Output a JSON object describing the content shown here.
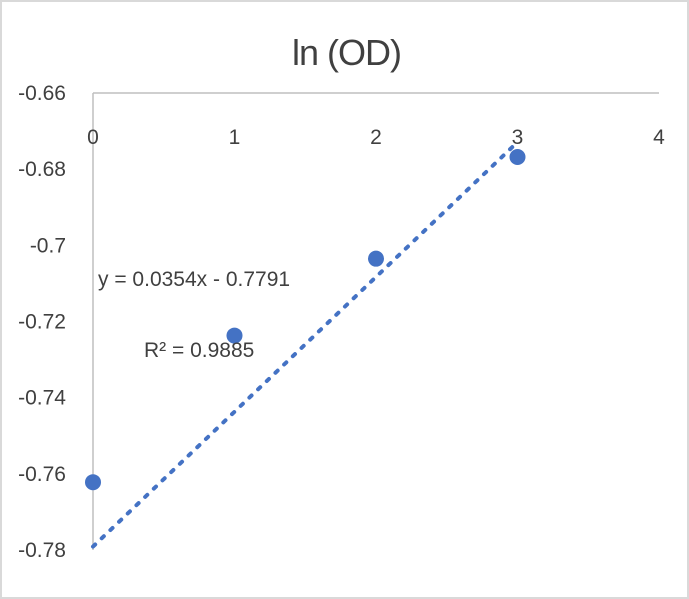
{
  "chart_data": {
    "type": "scatter",
    "title": "ln (OD)",
    "xlabel": "",
    "ylabel": "",
    "xlim": [
      0,
      4
    ],
    "ylim": [
      -0.78,
      -0.66
    ],
    "x_ticks": [
      "0",
      "1",
      "2",
      "3",
      "4"
    ],
    "y_ticks": [
      "-0.66",
      "-0.68",
      "-0.7",
      "-0.72",
      "-0.74",
      "-0.76",
      "-0.78"
    ],
    "series": [
      {
        "x": [
          0,
          1,
          2,
          3
        ],
        "y": [
          -0.7622,
          -0.7237,
          -0.7035,
          -0.6768
        ]
      }
    ],
    "trendline": {
      "type": "linear",
      "slope": 0.0354,
      "intercept": -0.7791,
      "x_range": [
        0,
        3
      ],
      "style": "dotted"
    },
    "annotations": {
      "equation": "y = 0.0354x - 0.7791",
      "r_squared": "R² = 0.9885"
    },
    "colors": {
      "marker": "#4472c4",
      "trendline": "#4472c4",
      "axis": "#bfbfbf",
      "text": "#404040"
    },
    "grid": false,
    "legend": "none"
  }
}
